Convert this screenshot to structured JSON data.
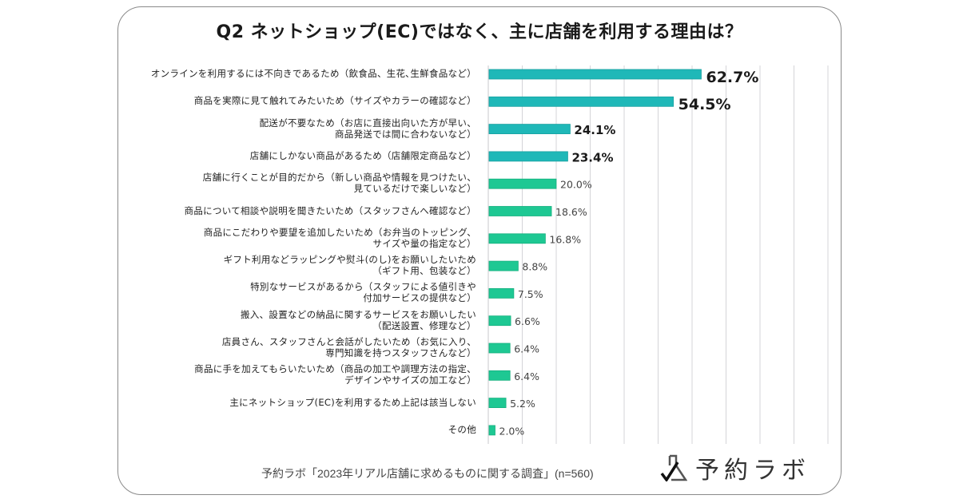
{
  "chart_data": {
    "type": "bar",
    "orientation": "horizontal",
    "title": "Q2  ネットショップ(EC)ではなく、主に店舗を利用する理由は？",
    "xlabel": "",
    "ylabel": "",
    "xlim": [
      0,
      100
    ],
    "grid": true,
    "grid_step": 10,
    "unit": "%",
    "categories": [
      "オンラインを利用するには不向きであるため（飲食品、生花､生鮮食品など）",
      "商品を実際に見て触れてみたいため（サイズやカラーの確認など）",
      "配送が不要なため（お店に直接出向いた方が早い、\n商品発送では間に合わないなど）",
      "店舗にしかない商品があるため（店舗限定商品など）",
      "店舗に行くことが目的だから（新しい商品や情報を見つけたい、\n見ているだけで楽しいなど）",
      "商品について相談や説明を聞きたいため（スタッフさんへ確認など）",
      "商品にこだわりや要望を追加したいため（お弁当のトッピング、\nサイズや量の指定など）",
      "ギフト利用などラッピングや熨斗(のし)をお願いしたいため\n（ギフト用、包装など）",
      "特別なサービスがあるから（スタッフによる値引きや\n付加サービスの提供など）",
      "搬入、設置などの納品に関するサービスをお願いしたい\n（配送設置、修理など）",
      "店員さん、スタッフさんと会話がしたいため（お気に入り、\n専門知識を持つスタッフさんなど）",
      "商品に手を加えてもらいたいため（商品の加工や調理方法の指定、\nデザインやサイズの加工など）",
      "主にネットショップ(EC)を利用するため上記は該当しない",
      "その他"
    ],
    "values": [
      62.7,
      54.5,
      24.1,
      23.4,
      20.0,
      18.6,
      16.8,
      8.8,
      7.5,
      6.6,
      6.4,
      6.4,
      5.2,
      2.0
    ],
    "value_labels": [
      "62.7%",
      "54.5%",
      "24.1%",
      "23.4%",
      "20.0%",
      "18.6%",
      "16.8%",
      "8.8%",
      "7.5%",
      "6.6%",
      "6.4%",
      "6.4%",
      "5.2%",
      "2.0%"
    ],
    "highlight_top_n": 4,
    "colors": {
      "highlight": "#1fb8b8",
      "normal": "#1ec893",
      "grid": "#d4d4d8",
      "label_highlight": "#1a1a1a",
      "label_normal": "#444444"
    }
  },
  "footer": {
    "source": "予約ラボ「2023年リアル店舗に求めるものに関する調査」(n=560)",
    "logo_text": "予約ラボ"
  }
}
